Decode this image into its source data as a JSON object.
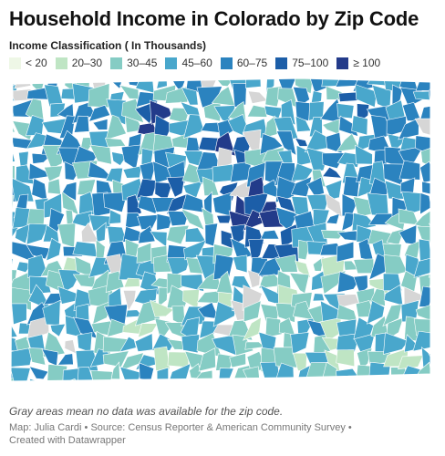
{
  "title": "Household Income in Colorado by Zip Code",
  "legend": {
    "title": "Income Classification ( In Thousands)",
    "items": [
      {
        "label": "< 20",
        "color": "#eef7e6"
      },
      {
        "label": "20–30",
        "color": "#bfe5c4"
      },
      {
        "label": "30–45",
        "color": "#85ccc4"
      },
      {
        "label": "45–60",
        "color": "#49a7cc"
      },
      {
        "label": "60–75",
        "color": "#2b83bf"
      },
      {
        "label": "75–100",
        "color": "#1c5ea8"
      },
      {
        "label": "≥ 100",
        "color": "#233b8a"
      }
    ],
    "no_data_color": "#d6d6d6"
  },
  "note": "Gray areas mean no data was available for the zip code.",
  "credit_line1": "Map: Julia Cardi • Source: Census Reporter & American Community Survey •",
  "credit_line2": "Created with Datawrapper"
}
